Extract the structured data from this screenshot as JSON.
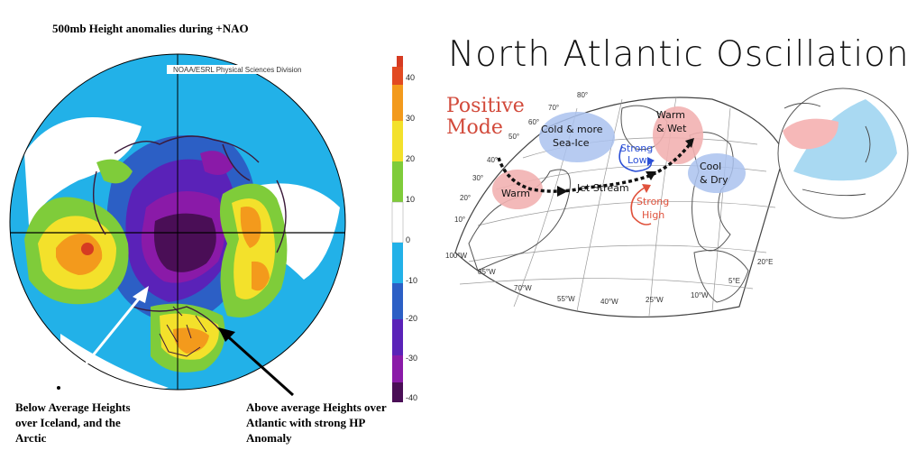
{
  "left_panel": {
    "title": "500mb Height anomalies during +NAO",
    "credit": "NOAA/ESRL Physical Sciences Division",
    "colorbar_ticks": [
      "40",
      "30",
      "20",
      "10",
      "0",
      "-10",
      "-20",
      "-30",
      "-40"
    ],
    "colors": {
      "strong_pos": "#d63b22",
      "pos": "#f39a1c",
      "mild_pos": "#f3e12b",
      "weak_pos": "#7fcc3a",
      "neutral": "#ffffff",
      "weak_neg": "#22b1e8",
      "neg": "#2c5fc5",
      "strong_neg": "#5a22b8",
      "very_neg": "#8a1aa8",
      "extreme_neg": "#4a0e56"
    },
    "caption_left": "Below Average Heights over Iceland, and the Arctic",
    "caption_right": "Above average Heights over Atlantic with strong HP Anomaly"
  },
  "right_panel": {
    "title": "North Atlantic Oscillation",
    "mode_line1": "Positive",
    "mode_line2": "Mode",
    "labels": {
      "cold": "Cold & more",
      "cold2": "Sea-Ice",
      "warm_wet1": "Warm",
      "warm_wet2": "& Wet",
      "warm": "Warm",
      "strong_low1": "Strong",
      "strong_low2": "Low",
      "strong_high1": "Strong",
      "strong_high2": "High",
      "cool_dry1": "Cool",
      "cool_dry2": "& Dry",
      "jet_stream": "Jet Stream"
    },
    "lat_labels": [
      "80°",
      "70°",
      "60°",
      "50°",
      "40°",
      "30°",
      "20°",
      "10°"
    ],
    "lon_labels": [
      "100°W",
      "85°W",
      "70°W",
      "55°W",
      "40°W",
      "25°W",
      "10°W",
      "5°E",
      "20°E"
    ],
    "colors": {
      "cold_blob": "#aac2ee",
      "warm_blob": "#f2b1b1",
      "low_arrow": "#2b4fd6",
      "high_arrow": "#e0523c",
      "ocean_blue": "#a9d9f2",
      "ocean_pink": "#f6b8b8"
    }
  }
}
